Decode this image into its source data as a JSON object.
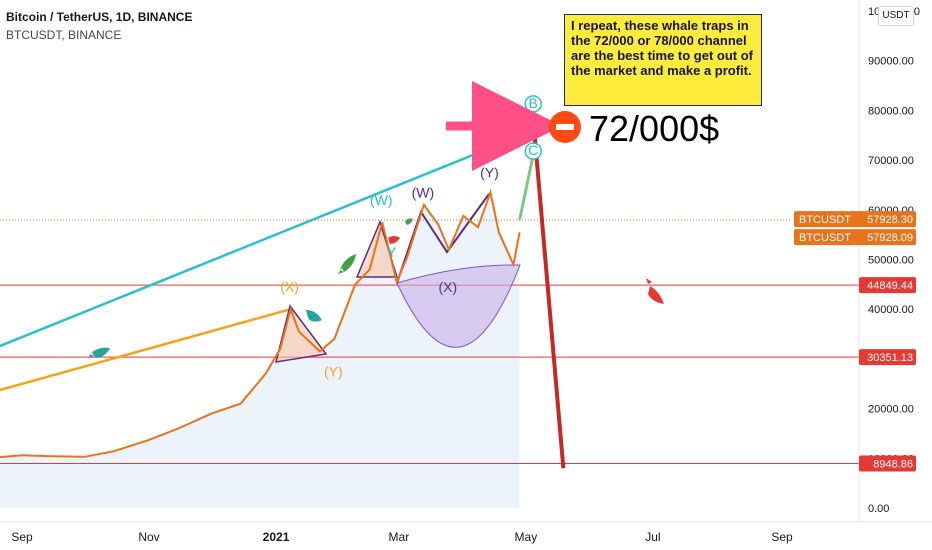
{
  "header": {
    "title": "Bitcoin / TetherUS, 1D, BINANCE",
    "symbol_line": "BTCUSDT, BINANCE",
    "currency_button": "USDT"
  },
  "annotation_note": "I repeat, these whale traps in the 72/000 or 78/000 channel are the best time to get out of the market and make a profit.",
  "big_price_label": "72/000$",
  "colors": {
    "price_line": "#e8731b",
    "area_fill": "#dce9f7",
    "trend_cyan": "#2bc0d0",
    "trend_orange": "#f7a21b",
    "horizontal_levels": "#e53935",
    "projection_red": "#c62828",
    "cup_fill": "#c9b3e8",
    "wave_purple": "#5b2a86",
    "note_bg": "#ffeb3b",
    "arrow_pink": "#ff4f87",
    "stop_icon": "#ff4a12"
  },
  "chart_data": {
    "type": "line",
    "title": "Bitcoin / TetherUS, 1D, BINANCE",
    "x_tick_labels": [
      "Sep",
      "Nov",
      "2021",
      "Mar",
      "May",
      "Jul",
      "Sep"
    ],
    "y_tick_labels": [
      "0.00",
      "10000.00",
      "20000.00",
      "30000.00",
      "40000.00",
      "50000.00",
      "60000.00",
      "70000.00",
      "80000.00",
      "90000.00",
      "100000.00"
    ],
    "ylim": [
      0,
      100000
    ],
    "grid": false,
    "series": [
      {
        "name": "BTCUSDT",
        "x": [
          "2020-08-15",
          "2020-09-01",
          "2020-09-15",
          "2020-10-01",
          "2020-10-15",
          "2020-11-01",
          "2020-11-15",
          "2020-12-01",
          "2020-12-15",
          "2020-12-27",
          "2021-01-03",
          "2021-01-08",
          "2021-01-12",
          "2021-01-22",
          "2021-01-29",
          "2021-02-08",
          "2021-02-15",
          "2021-02-21",
          "2021-02-28",
          "2021-03-05",
          "2021-03-13",
          "2021-03-20",
          "2021-03-25",
          "2021-04-01",
          "2021-04-08",
          "2021-04-14",
          "2021-04-18",
          "2021-04-25",
          "2021-04-28"
        ],
        "values": [
          10000,
          10600,
          10400,
          10300,
          11400,
          13700,
          16000,
          19000,
          21000,
          27000,
          32000,
          40000,
          35500,
          31500,
          34000,
          45000,
          48000,
          57500,
          45500,
          50500,
          61000,
          57000,
          52000,
          58800,
          56500,
          63500,
          55500,
          49000,
          55500
        ]
      }
    ],
    "projection": {
      "up_leg": {
        "x": [
          "2021-04-28",
          "2021-05-05"
        ],
        "values": [
          58000,
          72000
        ]
      },
      "down_leg": {
        "x": [
          "2021-05-05",
          "2021-05-19"
        ],
        "values": [
          76000,
          8000
        ]
      }
    },
    "trend_lines": [
      {
        "x": [
          "2020-08-15",
          "2021-05-05"
        ],
        "values": [
          31500,
          76000
        ]
      },
      {
        "x": [
          "2020-08-15",
          "2021-01-08"
        ],
        "values": [
          23000,
          40000
        ]
      }
    ],
    "horizontal_levels": [
      {
        "label": "44849.44",
        "value": 44849.44
      },
      {
        "label": "30351.13",
        "value": 30351.13
      },
      {
        "label": "8948.86",
        "value": 8948.86
      }
    ],
    "price_tags": [
      {
        "label": "BTCUSDT",
        "value": "57928.30",
        "y": 57928.3
      },
      {
        "label": "BTCUSDT",
        "value": "57928.09",
        "y": 57928.09
      }
    ],
    "wave_labels": [
      {
        "text": "(X)",
        "x": "2021-01-08",
        "y": 43600,
        "color": "#f7a21b"
      },
      {
        "text": "(Y)",
        "x": "2021-01-29",
        "y": 26500,
        "color": "#f7a21b"
      },
      {
        "text": "(W)",
        "x": "2021-02-21",
        "y": 61000,
        "color": "#2bc0d0"
      },
      {
        "text": "Y",
        "x": "2021-02-26",
        "y": 50500,
        "color": "#2bc0d0"
      },
      {
        "text": "(W)",
        "x": "2021-03-13",
        "y": 62500,
        "color": "#5b2a86"
      },
      {
        "text": "(X)",
        "x": "2021-03-25",
        "y": 43500,
        "color": "#5b2a86"
      },
      {
        "text": "(Y)",
        "x": "2021-04-14",
        "y": 66500,
        "color": "#5b2a86"
      },
      {
        "text": "B",
        "x": "2021-05-05",
        "y": 80500,
        "color": "#2bc0d0"
      },
      {
        "text": "C",
        "x": "2021-05-05",
        "y": 71000,
        "color": "#2bc0d0"
      }
    ]
  }
}
